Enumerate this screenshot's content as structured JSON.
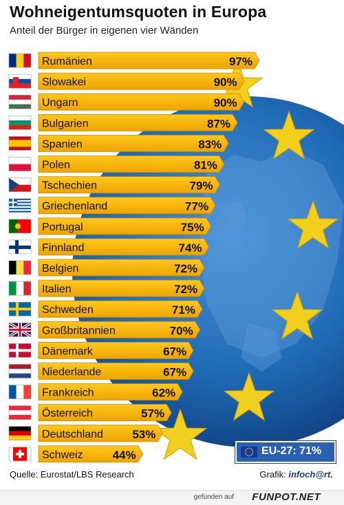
{
  "title": "Wohneigentumsquoten in Europa",
  "subtitle": "Anteil der Bürger in eigenen vier Wänden",
  "source": "Quelle: Eurostat/LBS Research",
  "credit_prefix": "Grafik: ",
  "credit_brand": "infoch@rt.",
  "eu_summary": "EU-27: 71%",
  "footer_found": "gefunden auf",
  "footer_site": "FUNPOT.NET",
  "colors": {
    "bar": "#f7b500",
    "bar_edge": "#c98a00",
    "globe": "#1f6ab5",
    "star": "#f2cf1d"
  },
  "chart_data": {
    "type": "bar",
    "orientation": "horizontal",
    "title": "Wohneigentumsquoten in Europa",
    "subtitle": "Anteil der Bürger in eigenen vier Wänden",
    "unit": "%",
    "categories": [
      "Rumänien",
      "Slowakei",
      "Ungarn",
      "Bulgarien",
      "Spanien",
      "Polen",
      "Tschechien",
      "Griechenland",
      "Portugal",
      "Finnland",
      "Belgien",
      "Italien",
      "Schweden",
      "Großbritannien",
      "Dänemark",
      "Niederlande",
      "Frankreich",
      "Österreich",
      "Deutschland",
      "Schweiz"
    ],
    "values": [
      97,
      90,
      90,
      87,
      83,
      81,
      79,
      77,
      75,
      74,
      72,
      72,
      71,
      70,
      67,
      67,
      62,
      57,
      53,
      44
    ],
    "labels": [
      "97%",
      "90%",
      "90%",
      "87%",
      "83%",
      "81%",
      "79%",
      "77%",
      "75%",
      "74%",
      "72%",
      "72%",
      "71%",
      "70%",
      "67%",
      "67%",
      "62%",
      "57%",
      "53%",
      "44%"
    ],
    "flags": [
      "ro",
      "sk",
      "hu",
      "bg",
      "es",
      "pl",
      "cz",
      "gr",
      "pt",
      "fi",
      "be",
      "it",
      "se",
      "gb",
      "dk",
      "nl",
      "fr",
      "at",
      "de",
      "ch"
    ]
  }
}
